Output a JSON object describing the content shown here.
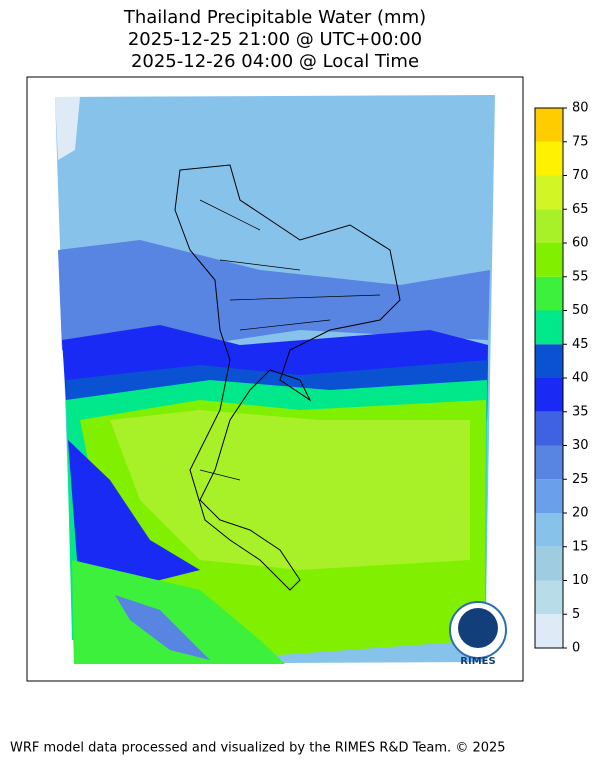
{
  "title": [
    "Thailand Precipitable Water (mm)",
    "2025-12-25 21:00 @ UTC+00:00",
    "2025-12-26 04:00 @ Local Time"
  ],
  "colorbar": {
    "ticks": [
      0,
      5,
      10,
      15,
      20,
      25,
      30,
      35,
      40,
      45,
      50,
      55,
      60,
      65,
      70,
      75,
      80
    ],
    "colors": [
      "#deebf7",
      "#b8dde9",
      "#9ecde2",
      "#86c2ea",
      "#6aa0ea",
      "#5884e2",
      "#3f62e2",
      "#1a2af5",
      "#0a52d2",
      "#00e88a",
      "#3cf03c",
      "#80f000",
      "#a8f028",
      "#d2f526",
      "#fff200",
      "#ffcc00"
    ]
  },
  "logo": "RIMES",
  "footer": "WRF model data processed and visualized by the RIMES R&D Team. © 2025"
}
